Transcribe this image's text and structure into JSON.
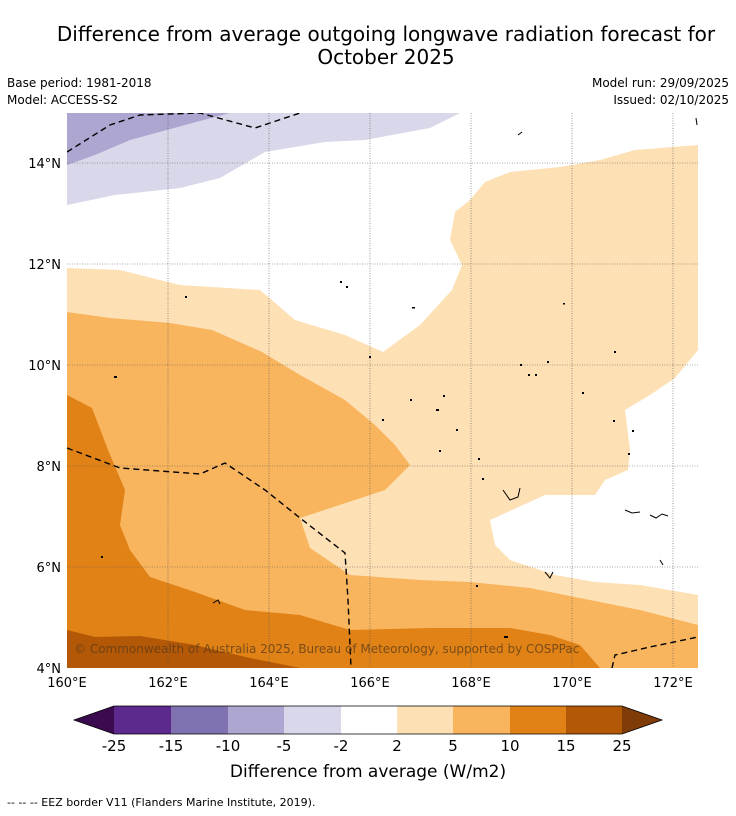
{
  "title_line1": "Difference from average outgoing longwave radiation forecast for",
  "title_line2": "October 2025",
  "meta_left": {
    "base_period": "Base period: 1981-2018",
    "model": "Model: ACCESS-S2"
  },
  "meta_right": {
    "model_run": "Model run: 29/09/2025",
    "issued": "Issued: 02/10/2025"
  },
  "map": {
    "lon_ticks": [
      "160°E",
      "162°E",
      "164°E",
      "166°E",
      "168°E",
      "170°E",
      "172°E"
    ],
    "lat_ticks": [
      "14°N",
      "12°N",
      "10°N",
      "8°N",
      "6°N",
      "4°N"
    ],
    "copyright": "© Commonwealth of Australia 2025, Bureau of Meteorology, supported by COSPPac"
  },
  "colorbar": {
    "ticks": [
      "-25",
      "-15",
      "-10",
      "-5",
      "-2",
      "2",
      "5",
      "10",
      "15",
      "25"
    ],
    "label": "Difference from average (W/m2)",
    "colors": {
      "below_min": "#3b0a4f",
      "neg25_15": "#5b2a8c",
      "neg15_10": "#8071b0",
      "neg10_5": "#ada6d0",
      "neg5_2": "#d8d8ea",
      "neg2_2": "#ffffff",
      "pos2_5": "#fde0b4",
      "pos5_10": "#f9b45e",
      "pos10_15": "#e08216",
      "pos15_25": "#b35806",
      "above_max": "#7f3b08"
    }
  },
  "footer_legend": "--  --  -- EEZ border V11 (Flanders Marine Institute, 2019)."
}
